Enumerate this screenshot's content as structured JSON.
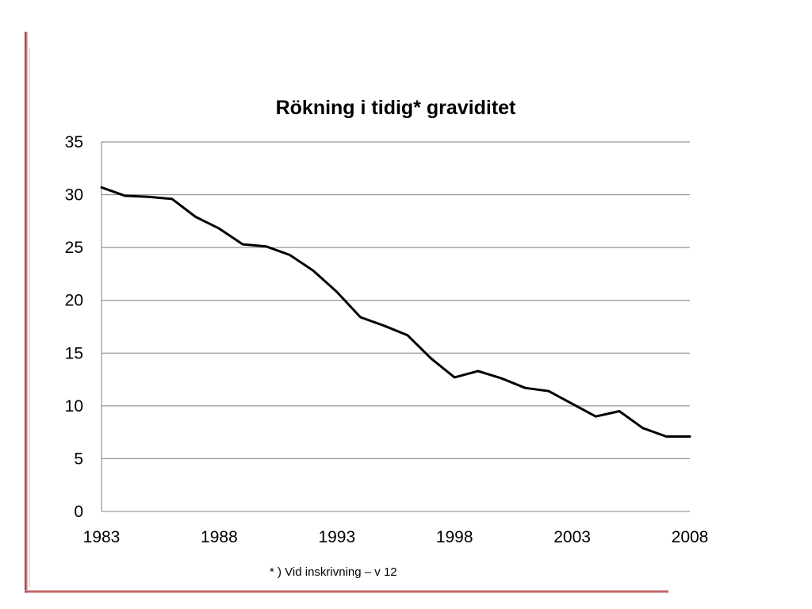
{
  "chart_data": {
    "type": "line",
    "title": "Rökning i tidig* graviditet",
    "xlabel": "",
    "ylabel": "",
    "footnote": "* ) Vid inskrivning – v 12",
    "xlim": [
      1983,
      2008
    ],
    "ylim": [
      0,
      35
    ],
    "x_ticks": [
      1983,
      1988,
      1993,
      1998,
      2003,
      2008
    ],
    "y_ticks": [
      0,
      5,
      10,
      15,
      20,
      25,
      30,
      35
    ],
    "grid": "horizontal",
    "legend": "none",
    "line_color": "#000000",
    "grid_color": "#7f7f7f",
    "series": [
      {
        "x": [
          1983,
          1984,
          1985,
          1986,
          1987,
          1988,
          1989,
          1990,
          1991,
          1992,
          1993,
          1994,
          1995,
          1996,
          1997,
          1998,
          1999,
          2000,
          2001,
          2002,
          2003,
          2004,
          2005,
          2006,
          2007,
          2008
        ],
        "values": [
          30.7,
          29.9,
          29.8,
          29.6,
          27.9,
          26.8,
          25.3,
          25.1,
          24.3,
          22.8,
          20.8,
          18.4,
          17.6,
          16.7,
          14.5,
          12.7,
          13.3,
          12.6,
          11.7,
          11.4,
          10.2,
          9.0,
          9.5,
          7.9,
          7.1,
          7.1
        ]
      }
    ]
  }
}
